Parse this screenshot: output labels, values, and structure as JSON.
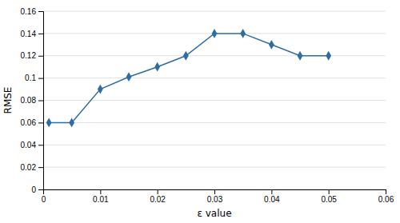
{
  "chart_data": {
    "type": "line",
    "x": [
      0.001,
      0.005,
      0.01,
      0.015,
      0.02,
      0.025,
      0.03,
      0.035,
      0.04,
      0.045,
      0.05
    ],
    "values": [
      0.06,
      0.06,
      0.09,
      0.101,
      0.11,
      0.12,
      0.14,
      0.14,
      0.13,
      0.12,
      0.12
    ],
    "color": "#2E6DA4",
    "marker": "diamond",
    "xlabel": "ε value",
    "ylabel": "RMSE",
    "xlim": [
      0,
      0.06
    ],
    "ylim": [
      0,
      0.16
    ],
    "xticks": [
      0,
      0.01,
      0.02,
      0.03,
      0.04,
      0.05,
      0.06
    ],
    "yticks": [
      0,
      0.02,
      0.04,
      0.06,
      0.08,
      0.1,
      0.12,
      0.14,
      0.16
    ],
    "grid": true
  }
}
